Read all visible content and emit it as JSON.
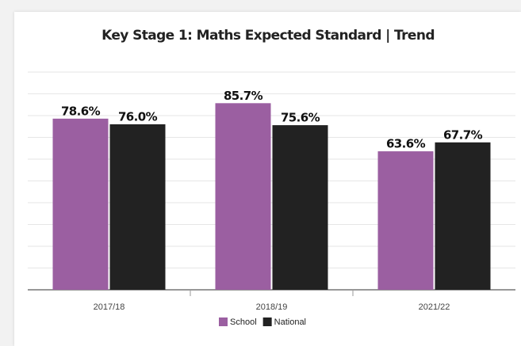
{
  "chart_data": {
    "type": "bar",
    "title": "Key Stage 1: Maths Expected Standard | Trend",
    "categories": [
      "2017/18",
      "2018/19",
      "2021/22"
    ],
    "series": [
      {
        "name": "School",
        "color": "#9b5fa1",
        "values": [
          78.6,
          85.7,
          63.6
        ],
        "value_labels": [
          "78.6%",
          "85.7%",
          "63.6%"
        ]
      },
      {
        "name": "National",
        "color": "#222222",
        "values": [
          76.0,
          75.6,
          67.7
        ],
        "value_labels": [
          "76.0%",
          "75.6%",
          "67.7%"
        ]
      }
    ],
    "ylim": [
      0,
      100
    ],
    "yticks": [
      0,
      10,
      20,
      30,
      40,
      50,
      60,
      70,
      80,
      90,
      100
    ],
    "grid": true,
    "legend": "bottom"
  }
}
